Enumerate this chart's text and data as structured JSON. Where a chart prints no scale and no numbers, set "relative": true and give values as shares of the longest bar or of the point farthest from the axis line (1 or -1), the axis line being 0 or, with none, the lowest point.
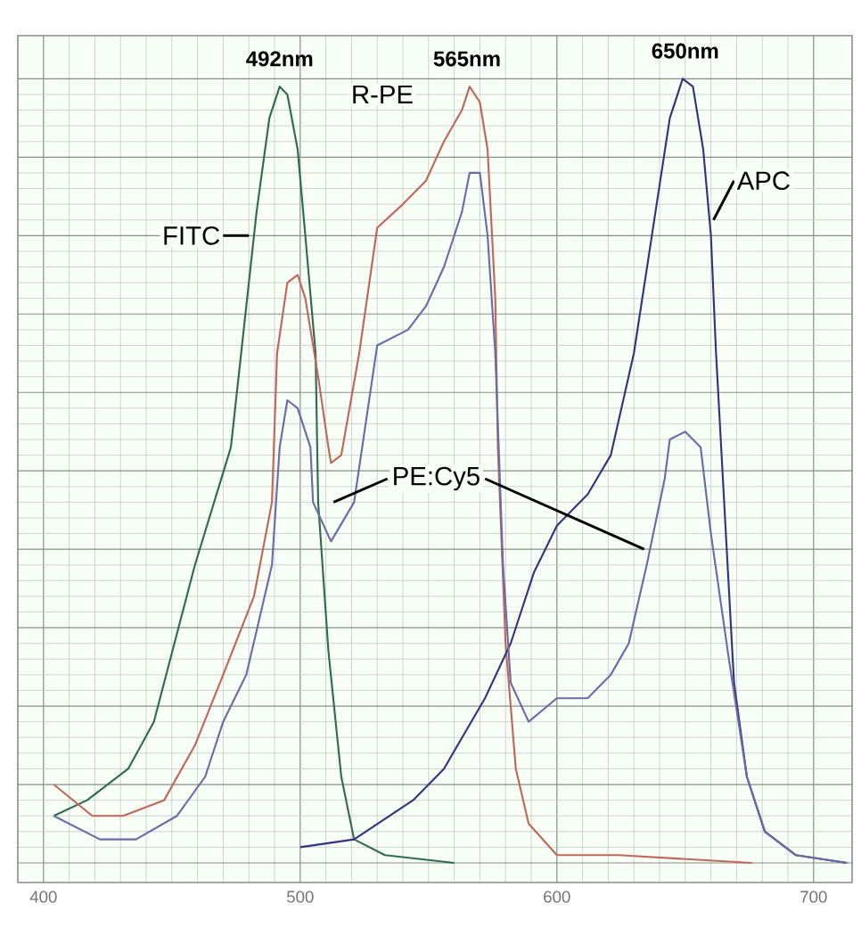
{
  "chart_data": {
    "type": "line",
    "relative": true,
    "xlim": [
      390,
      715
    ],
    "xticks": [
      400,
      500,
      600,
      700
    ],
    "grid": true,
    "annotations": [
      {
        "text": "492nm",
        "x": 492,
        "y": 0.99
      },
      {
        "text": "565nm",
        "x": 565,
        "y": 0.99
      },
      {
        "text": "650nm",
        "x": 650,
        "y": 1.0
      }
    ],
    "series": [
      {
        "name": "FITC",
        "color": "#2f6b4f",
        "x": [
          404,
          417,
          433,
          443,
          459,
          473,
          483,
          488,
          492,
          495,
          499,
          502,
          506,
          507,
          511,
          516,
          521,
          533,
          560
        ],
        "values": [
          0.06,
          0.08,
          0.12,
          0.18,
          0.38,
          0.53,
          0.83,
          0.95,
          0.99,
          0.98,
          0.91,
          0.8,
          0.65,
          0.46,
          0.27,
          0.11,
          0.03,
          0.01,
          0
        ]
      },
      {
        "name": "R-PE",
        "color": "#c0675a",
        "x": [
          404,
          419,
          431,
          447,
          459,
          470,
          482,
          489,
          491,
          495,
          499,
          502,
          507,
          511,
          512,
          516,
          523,
          530,
          540,
          549,
          556,
          563,
          566,
          570,
          573,
          576,
          577,
          580,
          584,
          589,
          600,
          624,
          676
        ],
        "values": [
          0.1,
          0.06,
          0.06,
          0.08,
          0.15,
          0.24,
          0.34,
          0.46,
          0.65,
          0.74,
          0.75,
          0.72,
          0.62,
          0.53,
          0.51,
          0.52,
          0.65,
          0.81,
          0.84,
          0.87,
          0.92,
          0.96,
          0.99,
          0.97,
          0.91,
          0.72,
          0.53,
          0.28,
          0.12,
          0.05,
          0.01,
          0.01,
          0
        ]
      },
      {
        "name": "APC",
        "color": "#34347e",
        "x": [
          500,
          521,
          544,
          556,
          572,
          582,
          591,
          600,
          612,
          621,
          630,
          637,
          644,
          649,
          653,
          657,
          660,
          662,
          664,
          669,
          674,
          681,
          693,
          713
        ],
        "values": [
          0.02,
          0.03,
          0.08,
          0.12,
          0.21,
          0.28,
          0.37,
          0.43,
          0.47,
          0.52,
          0.65,
          0.8,
          0.95,
          1.0,
          0.99,
          0.91,
          0.8,
          0.65,
          0.53,
          0.23,
          0.11,
          0.04,
          0.01,
          0
        ]
      },
      {
        "name": "PE:Cy5",
        "color": "#6b6ba8",
        "x": [
          404,
          422,
          436,
          452,
          463,
          470,
          479,
          489,
          492,
          495,
          499,
          504,
          505,
          512,
          521,
          530,
          542,
          549,
          556,
          563,
          566,
          570,
          573,
          576,
          579,
          582,
          589,
          600,
          612,
          621,
          628,
          635,
          642,
          644,
          650,
          656,
          660,
          667,
          674,
          681,
          693,
          713
        ],
        "values": [
          0.06,
          0.03,
          0.03,
          0.06,
          0.11,
          0.18,
          0.24,
          0.38,
          0.53,
          0.59,
          0.58,
          0.53,
          0.46,
          0.41,
          0.46,
          0.66,
          0.68,
          0.71,
          0.76,
          0.83,
          0.88,
          0.88,
          0.8,
          0.65,
          0.38,
          0.23,
          0.18,
          0.21,
          0.21,
          0.24,
          0.28,
          0.38,
          0.49,
          0.54,
          0.55,
          0.53,
          0.42,
          0.26,
          0.11,
          0.04,
          0.01,
          0
        ]
      }
    ]
  }
}
